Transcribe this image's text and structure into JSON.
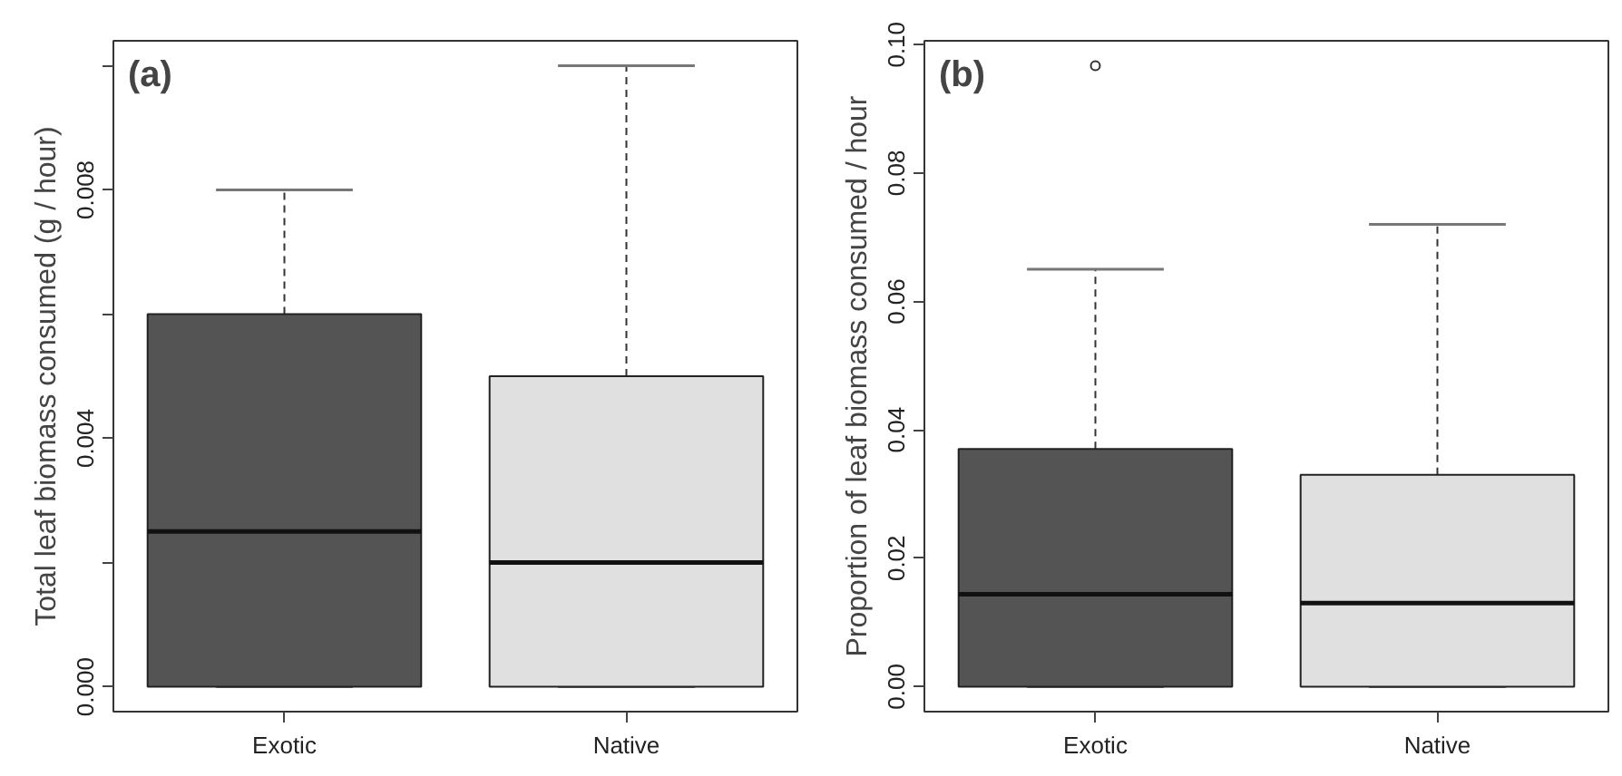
{
  "chart_data": [
    {
      "type": "box",
      "title": "(a)",
      "ylabel": "Total leaf biomass consumed (g / hour)",
      "categories": [
        "Exotic",
        "Native"
      ],
      "colors": [
        "#545454",
        "#e0e0e0"
      ],
      "boxes": [
        {
          "low": 0,
          "q1": 0,
          "median": 0.0025,
          "q3": 0.006,
          "high": 0.008
        },
        {
          "low": 0,
          "q1": 0,
          "median": 0.002,
          "q3": 0.005,
          "high": 0.01
        }
      ],
      "ylim": [
        -0.0004,
        0.0104
      ],
      "yticks": [
        {
          "value": 0,
          "label": "0.000"
        },
        {
          "value": 0.002,
          "label": null
        },
        {
          "value": 0.004,
          "label": "0.004"
        },
        {
          "value": 0.006,
          "label": null
        },
        {
          "value": 0.008,
          "label": "0.008"
        },
        {
          "value": 0.01,
          "label": null
        }
      ],
      "grid": false,
      "legend": false
    },
    {
      "type": "box",
      "title": "(b)",
      "ylabel": "Proportion of leaf biomass consumed / hour",
      "categories": [
        "Exotic",
        "Native"
      ],
      "colors": [
        "#545454",
        "#e0e0e0"
      ],
      "boxes": [
        {
          "low": 0,
          "q1": 0,
          "median": 0.0144,
          "q3": 0.037,
          "high": 0.065,
          "outliers": [
            0.0967
          ]
        },
        {
          "low": 0,
          "q1": 0,
          "median": 0.013,
          "q3": 0.033,
          "high": 0.072
        }
      ],
      "ylim": [
        -0.0039,
        0.1006
      ],
      "yticks": [
        {
          "value": 0,
          "label": "0.00"
        },
        {
          "value": 0.02,
          "label": "0.02"
        },
        {
          "value": 0.04,
          "label": "0.04"
        },
        {
          "value": 0.06,
          "label": "0.06"
        },
        {
          "value": 0.08,
          "label": "0.08"
        },
        {
          "value": 0.1,
          "label": "0.10"
        }
      ],
      "grid": false,
      "legend": false
    }
  ]
}
